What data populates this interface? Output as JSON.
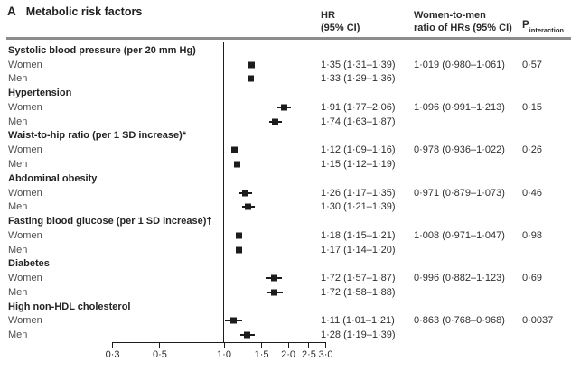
{
  "panel": {
    "label": "A",
    "title": "Metabolic risk factors"
  },
  "column_headers": {
    "hr_line1": "HR",
    "hr_line2": "(95% CI)",
    "ratio_line1": "Women-to-men",
    "ratio_line2": "ratio of HRs (95% CI)",
    "p_base": "P",
    "p_sub": "interaction"
  },
  "chart_data": {
    "type": "forest",
    "x_scale": "log",
    "xlim": [
      0.3,
      3.0
    ],
    "reference_line": 1.0,
    "x_ticks": [
      0.3,
      0.5,
      1.0,
      1.5,
      2.0,
      2.5,
      3.0
    ],
    "x_tick_labels": [
      "0·3",
      "0·5",
      "1·0",
      "1·5",
      "2·0",
      "2·5",
      "3·0"
    ],
    "marker": "square",
    "groups": [
      {
        "label": "Systolic blood pressure (per 20 mm Hg)",
        "rows": [
          {
            "sex": "Women",
            "hr": 1.35,
            "ci": [
              1.31,
              1.39
            ],
            "hr_ci_text": "1·35 (1·31–1·39)",
            "ratio_text": "1·019 (0·980–1·061)",
            "p_text": "0·57"
          },
          {
            "sex": "Men",
            "hr": 1.33,
            "ci": [
              1.29,
              1.36
            ],
            "hr_ci_text": "1·33 (1·29–1·36)"
          }
        ]
      },
      {
        "label": "Hypertension",
        "rows": [
          {
            "sex": "Women",
            "hr": 1.91,
            "ci": [
              1.77,
              2.06
            ],
            "hr_ci_text": "1·91 (1·77–2·06)",
            "ratio_text": "1·096 (0·991–1·213)",
            "p_text": "0·15"
          },
          {
            "sex": "Men",
            "hr": 1.74,
            "ci": [
              1.63,
              1.87
            ],
            "hr_ci_text": "1·74 (1·63–1·87)"
          }
        ]
      },
      {
        "label": "Waist-to-hip ratio (per 1 SD increase)*",
        "rows": [
          {
            "sex": "Women",
            "hr": 1.12,
            "ci": [
              1.09,
              1.16
            ],
            "hr_ci_text": "1·12 (1·09–1·16)",
            "ratio_text": "0·978 (0·936–1·022)",
            "p_text": "0·26"
          },
          {
            "sex": "Men",
            "hr": 1.15,
            "ci": [
              1.12,
              1.19
            ],
            "hr_ci_text": "1·15 (1·12–1·19)"
          }
        ]
      },
      {
        "label": "Abdominal obesity",
        "rows": [
          {
            "sex": "Women",
            "hr": 1.26,
            "ci": [
              1.17,
              1.35
            ],
            "hr_ci_text": "1·26 (1·17–1·35)",
            "ratio_text": "0·971 (0·879–1·073)",
            "p_text": "0·46"
          },
          {
            "sex": "Men",
            "hr": 1.3,
            "ci": [
              1.21,
              1.39
            ],
            "hr_ci_text": "1·30 (1·21–1·39)"
          }
        ]
      },
      {
        "label": "Fasting blood glucose (per 1 SD increase)†",
        "rows": [
          {
            "sex": "Women",
            "hr": 1.18,
            "ci": [
              1.15,
              1.21
            ],
            "hr_ci_text": "1·18 (1·15–1·21)",
            "ratio_text": "1·008 (0·971–1·047)",
            "p_text": "0·98"
          },
          {
            "sex": "Men",
            "hr": 1.17,
            "ci": [
              1.14,
              1.2
            ],
            "hr_ci_text": "1·17 (1·14–1·20)"
          }
        ]
      },
      {
        "label": "Diabetes",
        "rows": [
          {
            "sex": "Women",
            "hr": 1.72,
            "ci": [
              1.57,
              1.87
            ],
            "hr_ci_text": "1·72 (1·57–1·87)",
            "ratio_text": "0·996 (0·882–1·123)",
            "p_text": "0·69"
          },
          {
            "sex": "Men",
            "hr": 1.72,
            "ci": [
              1.58,
              1.88
            ],
            "hr_ci_text": "1·72 (1·58–1·88)"
          }
        ]
      },
      {
        "label": "High non-HDL cholesterol",
        "rows": [
          {
            "sex": "Women",
            "hr": 1.11,
            "ci": [
              1.01,
              1.21
            ],
            "hr_ci_text": "1·11 (1·01–1·21)",
            "ratio_text": "0·863 (0·768–0·968)",
            "p_text": "0·0037"
          },
          {
            "sex": "Men",
            "hr": 1.28,
            "ci": [
              1.19,
              1.39
            ],
            "hr_ci_text": "1·28 (1·19–1·39)"
          }
        ]
      }
    ]
  }
}
